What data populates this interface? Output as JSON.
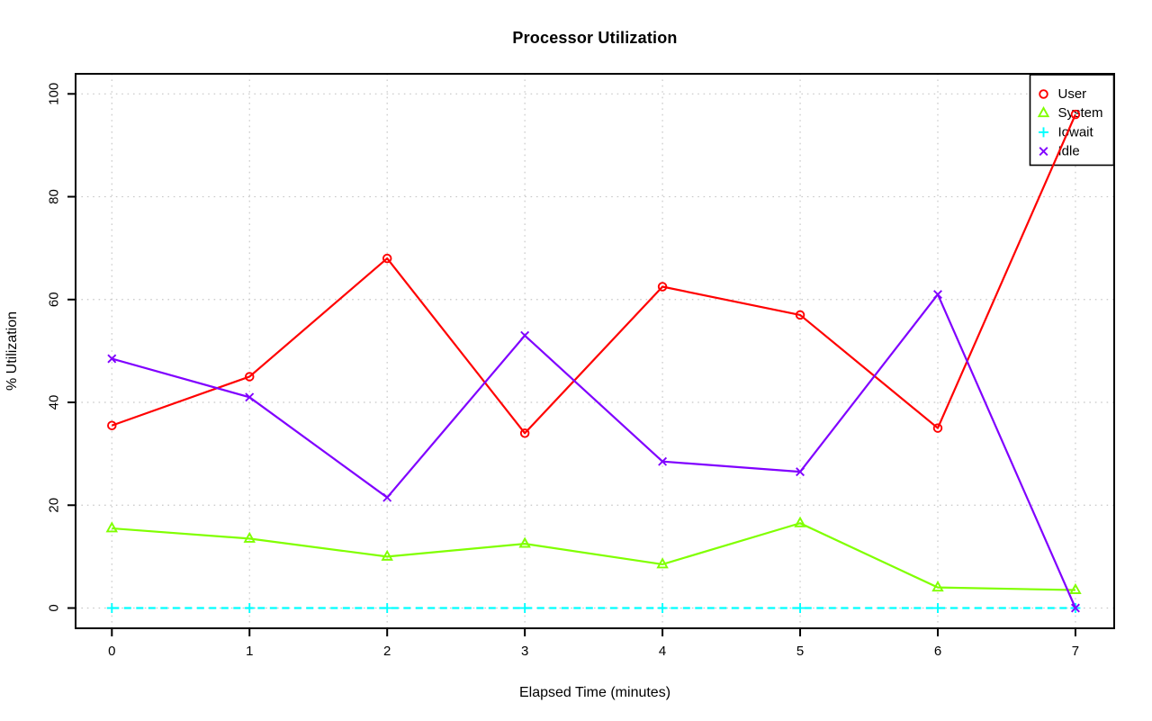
{
  "title": "Processor Utilization",
  "colors": {
    "background": "#ffffff",
    "grid": "#c8c8c8",
    "axis": "#000000",
    "legend_border": "#000000"
  },
  "chart_data": {
    "type": "line",
    "title": "Processor Utilization",
    "xlabel": "Elapsed Time (minutes)",
    "ylabel": "% Utilization",
    "x": [
      0,
      1,
      2,
      3,
      4,
      5,
      6,
      7
    ],
    "x_tick_labels": [
      "0",
      "1",
      "2",
      "3",
      "4",
      "5",
      "6",
      "7"
    ],
    "y_ticks": [
      0,
      20,
      40,
      60,
      80,
      100
    ],
    "y_tick_labels": [
      "0",
      "20",
      "40",
      "60",
      "80",
      "100"
    ],
    "xlim": [
      0,
      7
    ],
    "ylim": [
      0,
      100
    ],
    "grid": true,
    "grid_style": "dotted",
    "legend_position": "top-right",
    "legend": [
      "User",
      "System",
      "Iowait",
      "Idle"
    ],
    "series": [
      {
        "name": "User",
        "color": "#ff0000",
        "marker": "circle",
        "line": "solid",
        "values": [
          35.5,
          45,
          68,
          34,
          62.5,
          57,
          35,
          96
        ]
      },
      {
        "name": "System",
        "color": "#80ff00",
        "marker": "triangle",
        "line": "solid",
        "values": [
          15.5,
          13.5,
          10,
          12.5,
          8.5,
          16.5,
          4,
          3.5
        ]
      },
      {
        "name": "Iowait",
        "color": "#00ffff",
        "marker": "plus",
        "line": "dashed",
        "values": [
          0,
          0,
          0,
          0,
          0,
          0,
          0,
          0
        ]
      },
      {
        "name": "Idle",
        "color": "#8000ff",
        "marker": "x",
        "line": "solid",
        "values": [
          48.5,
          41,
          21.5,
          53,
          28.5,
          26.5,
          61,
          0
        ]
      }
    ]
  }
}
